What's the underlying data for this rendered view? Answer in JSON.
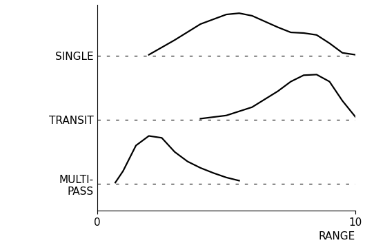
{
  "chart_data": {
    "type": "ridgeline",
    "xlabel": "RANGE",
    "xlim": [
      0,
      10
    ],
    "xticks": [
      0,
      10
    ],
    "color": "#000000",
    "line_style": "solid",
    "series": [
      {
        "name": "SINGLE",
        "x": [
          2,
          3,
          4,
          5,
          5.5,
          6,
          7,
          7.5,
          8,
          8.5,
          9,
          9.5,
          10
        ],
        "values": [
          0.02,
          0.25,
          0.5,
          0.65,
          0.67,
          0.63,
          0.45,
          0.37,
          0.36,
          0.33,
          0.2,
          0.05,
          0.02
        ]
      },
      {
        "name": "TRANSIT",
        "x": [
          4,
          5,
          6,
          7,
          7.5,
          8,
          8.5,
          9,
          9.5,
          10
        ],
        "values": [
          0.02,
          0.07,
          0.2,
          0.45,
          0.6,
          0.7,
          0.71,
          0.6,
          0.3,
          0.05
        ]
      },
      {
        "name": "MULTI-\nPASS",
        "x": [
          0.7,
          1,
          1.5,
          2,
          2.5,
          3,
          3.5,
          4,
          4.5,
          5,
          5.5
        ],
        "values": [
          0.02,
          0.2,
          0.6,
          0.75,
          0.72,
          0.5,
          0.35,
          0.25,
          0.17,
          0.1,
          0.05
        ]
      }
    ]
  }
}
